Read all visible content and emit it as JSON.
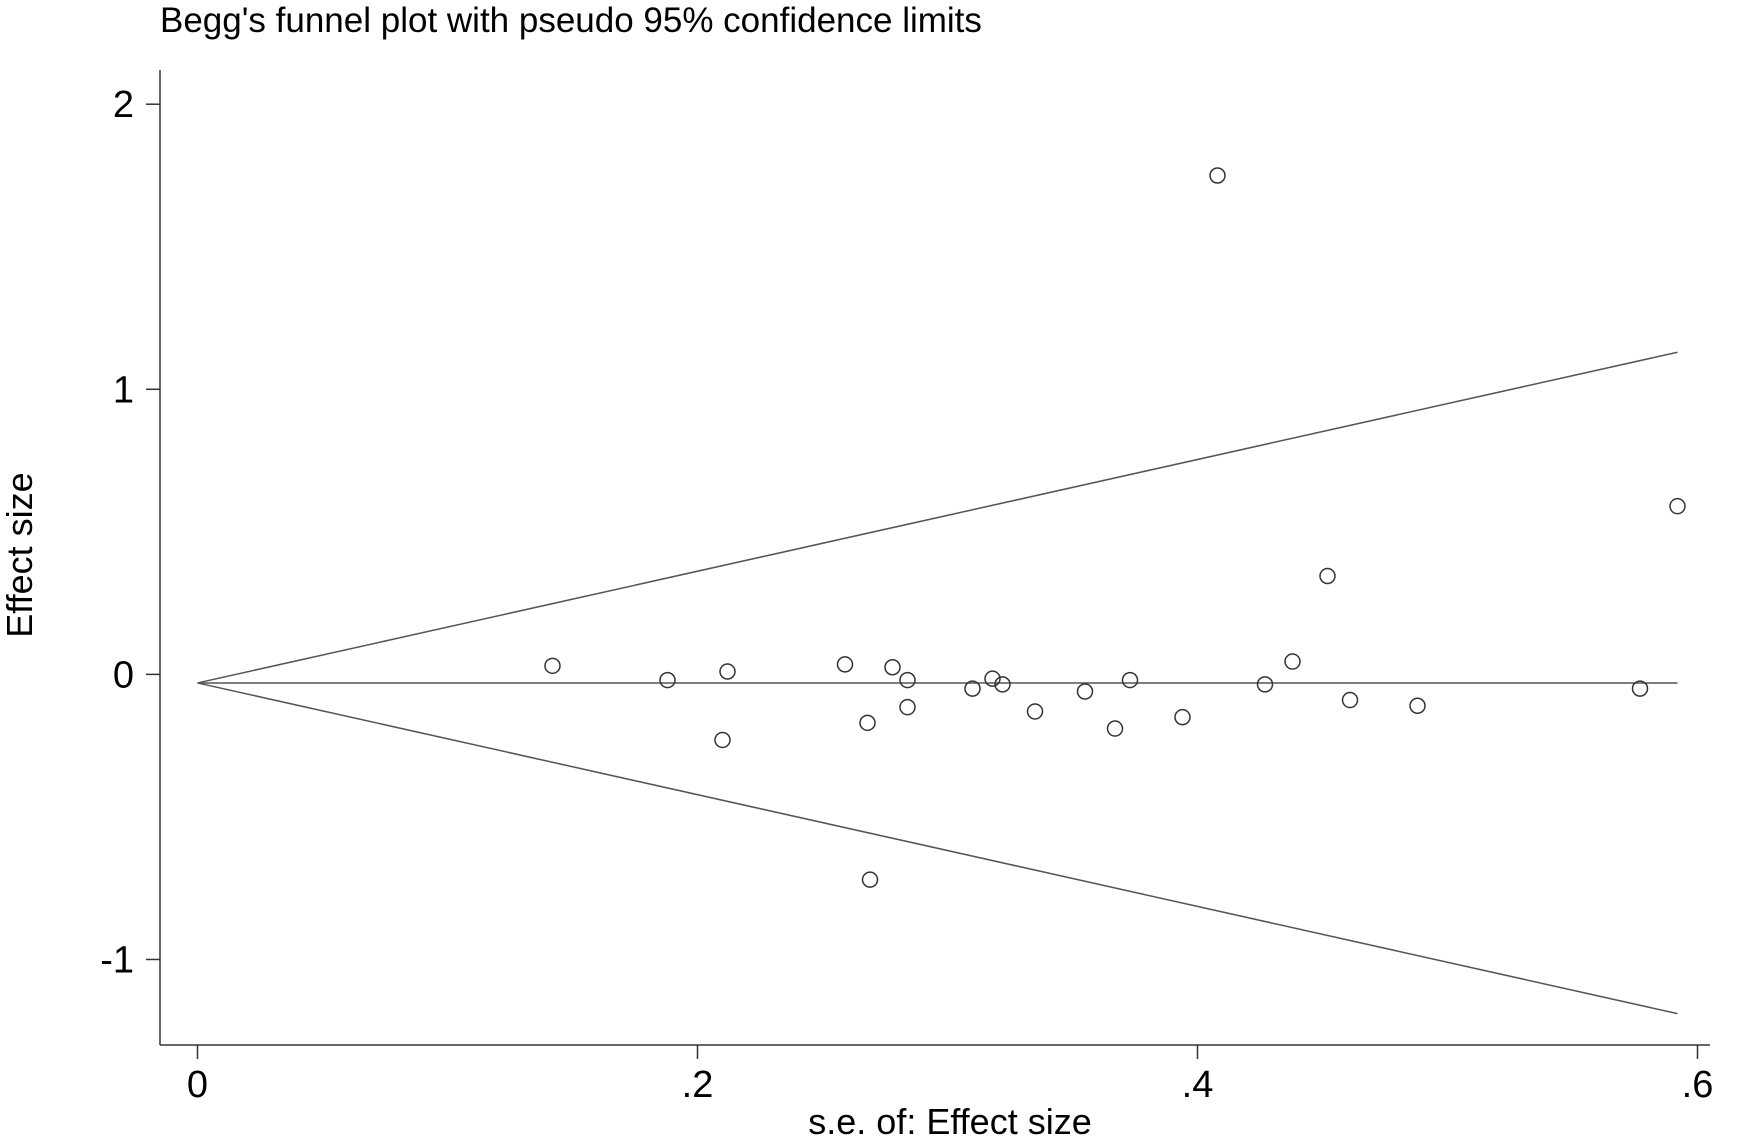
{
  "chart_data": {
    "type": "scatter",
    "title": "Begg's funnel plot with pseudo 95% confidence limits",
    "xlabel": "s.e. of: Effect size",
    "ylabel": "Effect size",
    "xlim": [
      -0.015,
      0.605
    ],
    "ylim": [
      -1.3,
      2.12
    ],
    "x_ticks": [
      {
        "value": 0,
        "label": "0"
      },
      {
        "value": 0.2,
        "label": ".2"
      },
      {
        "value": 0.4,
        "label": ".4"
      },
      {
        "value": 0.6,
        "label": ".6"
      }
    ],
    "y_ticks": [
      {
        "value": 2,
        "label": "2"
      },
      {
        "value": 1,
        "label": "1"
      },
      {
        "value": 0,
        "label": "0"
      },
      {
        "value": -1,
        "label": "-1"
      }
    ],
    "pooled_effect": -0.03,
    "funnel": {
      "se_max": 0.592,
      "upper_end": 1.13,
      "lower_end": -1.19
    },
    "points": [
      {
        "x": 0.142,
        "y": 0.03
      },
      {
        "x": 0.188,
        "y": -0.02
      },
      {
        "x": 0.21,
        "y": -0.23
      },
      {
        "x": 0.212,
        "y": 0.01
      },
      {
        "x": 0.259,
        "y": 0.035
      },
      {
        "x": 0.268,
        "y": -0.17
      },
      {
        "x": 0.269,
        "y": -0.72
      },
      {
        "x": 0.278,
        "y": 0.025
      },
      {
        "x": 0.284,
        "y": -0.02
      },
      {
        "x": 0.284,
        "y": -0.115
      },
      {
        "x": 0.31,
        "y": -0.05
      },
      {
        "x": 0.318,
        "y": -0.015
      },
      {
        "x": 0.322,
        "y": -0.035
      },
      {
        "x": 0.335,
        "y": -0.13
      },
      {
        "x": 0.355,
        "y": -0.06
      },
      {
        "x": 0.367,
        "y": -0.19
      },
      {
        "x": 0.373,
        "y": -0.02
      },
      {
        "x": 0.394,
        "y": -0.15
      },
      {
        "x": 0.408,
        "y": 1.75
      },
      {
        "x": 0.427,
        "y": -0.035
      },
      {
        "x": 0.438,
        "y": 0.045
      },
      {
        "x": 0.452,
        "y": 0.345
      },
      {
        "x": 0.461,
        "y": -0.09
      },
      {
        "x": 0.488,
        "y": -0.11
      },
      {
        "x": 0.577,
        "y": -0.05
      },
      {
        "x": 0.592,
        "y": 0.59
      }
    ]
  }
}
